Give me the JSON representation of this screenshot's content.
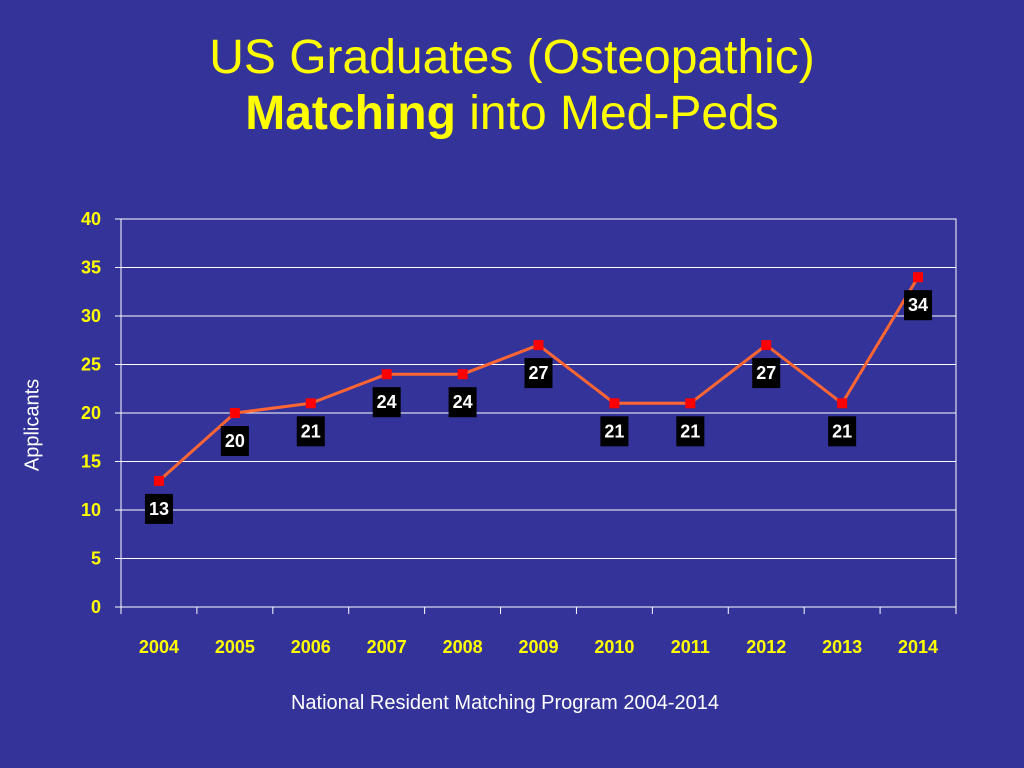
{
  "slide": {
    "title_line1": "US Graduates (Osteopathic)",
    "title_bold": "Matching",
    "title_rest": " into Med-Peds",
    "source": "National Resident Matching Program 2004-2014"
  },
  "colors": {
    "background": "#333399",
    "title": "#ffff00",
    "line": "#ff6633",
    "marker": "#ff0000",
    "plot_border": "#ffffff",
    "gridline": "#ffffff",
    "tick_label": "#ffff00",
    "data_label_bg": "#000000",
    "data_label_text": "#ffffff"
  },
  "chart_data": {
    "type": "line",
    "title": "",
    "xlabel": "",
    "ylabel": "Applicants",
    "categories": [
      "2004",
      "2005",
      "2006",
      "2007",
      "2008",
      "2009",
      "2010",
      "2011",
      "2012",
      "2013",
      "2014"
    ],
    "series": [
      {
        "values": [
          13,
          20,
          21,
          24,
          24,
          27,
          21,
          21,
          27,
          21,
          34
        ]
      }
    ],
    "ylim": [
      0,
      40
    ],
    "yticks": [
      0,
      5,
      10,
      15,
      20,
      25,
      30,
      35,
      40
    ],
    "grid": true,
    "legend": "none",
    "data_labels": true
  }
}
